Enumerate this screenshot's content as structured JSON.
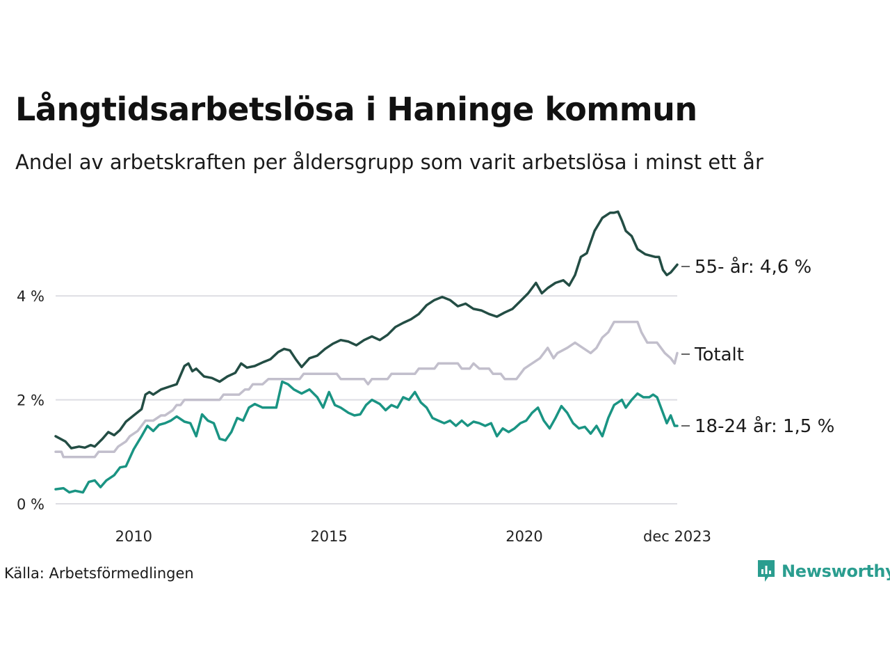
{
  "header": {
    "title": "Långtidsarbetslösa i Haninge kommun",
    "subtitle": "Andel av arbetskraften per åldersgrupp som varit arbetslösa i minst ett år"
  },
  "footer": {
    "source": "Källa: Arbetsförmedlingen",
    "brand": "Newsworthy"
  },
  "colors": {
    "age55": "#234d44",
    "total": "#c2bfcc",
    "age18_24": "#1a9483",
    "grid": "#dddde3",
    "brand": "#2a9d8f"
  },
  "chart_data": {
    "type": "line",
    "title": "Långtidsarbetslösa i Haninge kommun",
    "ylabel": "",
    "xlabel": "",
    "ylim": [
      0,
      5.8
    ],
    "xlim": [
      2008.0,
      2023.917
    ],
    "y_ticks": [
      {
        "value": 0,
        "label": "0 %"
      },
      {
        "value": 2,
        "label": "2 %"
      },
      {
        "value": 4,
        "label": "4 %"
      }
    ],
    "x_ticks": [
      {
        "value": 2010,
        "label": "2010"
      },
      {
        "value": 2015,
        "label": "2015"
      },
      {
        "value": 2020,
        "label": "2020"
      },
      {
        "value": 2023.917,
        "label": "dec 2023"
      }
    ],
    "series": [
      {
        "key": "age55",
        "name": "55- år",
        "end_label": "55- år: 4,6 %",
        "color": "#234d44",
        "points": [
          [
            2008.0,
            1.3
          ],
          [
            2008.25,
            1.2
          ],
          [
            2008.4,
            1.07
          ],
          [
            2008.6,
            1.1
          ],
          [
            2008.75,
            1.08
          ],
          [
            2008.9,
            1.13
          ],
          [
            2009.0,
            1.1
          ],
          [
            2009.2,
            1.25
          ],
          [
            2009.35,
            1.38
          ],
          [
            2009.5,
            1.32
          ],
          [
            2009.65,
            1.42
          ],
          [
            2009.8,
            1.58
          ],
          [
            2010.0,
            1.7
          ],
          [
            2010.2,
            1.82
          ],
          [
            2010.3,
            2.1
          ],
          [
            2010.4,
            2.15
          ],
          [
            2010.5,
            2.1
          ],
          [
            2010.7,
            2.2
          ],
          [
            2010.9,
            2.25
          ],
          [
            2011.1,
            2.3
          ],
          [
            2011.3,
            2.65
          ],
          [
            2011.4,
            2.7
          ],
          [
            2011.5,
            2.55
          ],
          [
            2011.6,
            2.6
          ],
          [
            2011.8,
            2.45
          ],
          [
            2012.0,
            2.42
          ],
          [
            2012.2,
            2.35
          ],
          [
            2012.4,
            2.45
          ],
          [
            2012.6,
            2.52
          ],
          [
            2012.75,
            2.7
          ],
          [
            2012.9,
            2.62
          ],
          [
            2013.1,
            2.65
          ],
          [
            2013.3,
            2.72
          ],
          [
            2013.5,
            2.78
          ],
          [
            2013.7,
            2.92
          ],
          [
            2013.85,
            2.98
          ],
          [
            2014.0,
            2.95
          ],
          [
            2014.15,
            2.78
          ],
          [
            2014.3,
            2.63
          ],
          [
            2014.5,
            2.8
          ],
          [
            2014.7,
            2.85
          ],
          [
            2014.9,
            2.98
          ],
          [
            2015.1,
            3.08
          ],
          [
            2015.3,
            3.15
          ],
          [
            2015.5,
            3.12
          ],
          [
            2015.7,
            3.05
          ],
          [
            2015.9,
            3.15
          ],
          [
            2016.1,
            3.22
          ],
          [
            2016.3,
            3.15
          ],
          [
            2016.5,
            3.25
          ],
          [
            2016.7,
            3.4
          ],
          [
            2016.9,
            3.48
          ],
          [
            2017.1,
            3.55
          ],
          [
            2017.3,
            3.65
          ],
          [
            2017.5,
            3.82
          ],
          [
            2017.7,
            3.92
          ],
          [
            2017.9,
            3.98
          ],
          [
            2018.1,
            3.92
          ],
          [
            2018.3,
            3.8
          ],
          [
            2018.5,
            3.85
          ],
          [
            2018.7,
            3.75
          ],
          [
            2018.9,
            3.72
          ],
          [
            2019.1,
            3.65
          ],
          [
            2019.3,
            3.6
          ],
          [
            2019.5,
            3.68
          ],
          [
            2019.7,
            3.75
          ],
          [
            2019.9,
            3.9
          ],
          [
            2020.1,
            4.05
          ],
          [
            2020.3,
            4.25
          ],
          [
            2020.45,
            4.05
          ],
          [
            2020.6,
            4.15
          ],
          [
            2020.8,
            4.25
          ],
          [
            2021.0,
            4.3
          ],
          [
            2021.15,
            4.2
          ],
          [
            2021.3,
            4.4
          ],
          [
            2021.45,
            4.75
          ],
          [
            2021.6,
            4.82
          ],
          [
            2021.8,
            5.25
          ],
          [
            2022.0,
            5.5
          ],
          [
            2022.2,
            5.6
          ],
          [
            2022.3,
            5.6
          ],
          [
            2022.4,
            5.62
          ],
          [
            2022.5,
            5.45
          ],
          [
            2022.6,
            5.25
          ],
          [
            2022.75,
            5.15
          ],
          [
            2022.9,
            4.9
          ],
          [
            2023.1,
            4.8
          ],
          [
            2023.2,
            4.78
          ],
          [
            2023.35,
            4.75
          ],
          [
            2023.45,
            4.75
          ],
          [
            2023.55,
            4.5
          ],
          [
            2023.65,
            4.4
          ],
          [
            2023.75,
            4.45
          ],
          [
            2023.917,
            4.6
          ]
        ]
      },
      {
        "key": "total",
        "name": "Totalt",
        "end_label": "Totalt",
        "color": "#c2bfcc",
        "points": [
          [
            2008.0,
            1.0
          ],
          [
            2008.15,
            1.0
          ],
          [
            2008.2,
            0.9
          ],
          [
            2008.9,
            0.9
          ],
          [
            2009.0,
            0.9
          ],
          [
            2009.1,
            1.0
          ],
          [
            2009.5,
            1.0
          ],
          [
            2009.6,
            1.1
          ],
          [
            2009.8,
            1.2
          ],
          [
            2009.9,
            1.3
          ],
          [
            2010.1,
            1.4
          ],
          [
            2010.3,
            1.6
          ],
          [
            2010.5,
            1.6
          ],
          [
            2010.7,
            1.7
          ],
          [
            2010.8,
            1.7
          ],
          [
            2011.0,
            1.8
          ],
          [
            2011.1,
            1.9
          ],
          [
            2011.2,
            1.9
          ],
          [
            2011.3,
            2.0
          ],
          [
            2012.2,
            2.0
          ],
          [
            2012.3,
            2.1
          ],
          [
            2012.7,
            2.1
          ],
          [
            2012.85,
            2.2
          ],
          [
            2012.95,
            2.2
          ],
          [
            2013.05,
            2.3
          ],
          [
            2013.3,
            2.3
          ],
          [
            2013.45,
            2.4
          ],
          [
            2014.25,
            2.4
          ],
          [
            2014.35,
            2.5
          ],
          [
            2015.2,
            2.5
          ],
          [
            2015.3,
            2.4
          ],
          [
            2015.9,
            2.4
          ],
          [
            2016.0,
            2.3
          ],
          [
            2016.1,
            2.4
          ],
          [
            2016.5,
            2.4
          ],
          [
            2016.6,
            2.5
          ],
          [
            2017.2,
            2.5
          ],
          [
            2017.3,
            2.6
          ],
          [
            2017.7,
            2.6
          ],
          [
            2017.8,
            2.7
          ],
          [
            2018.3,
            2.7
          ],
          [
            2018.4,
            2.6
          ],
          [
            2018.6,
            2.6
          ],
          [
            2018.7,
            2.7
          ],
          [
            2018.85,
            2.6
          ],
          [
            2019.1,
            2.6
          ],
          [
            2019.2,
            2.5
          ],
          [
            2019.4,
            2.5
          ],
          [
            2019.5,
            2.4
          ],
          [
            2019.8,
            2.4
          ],
          [
            2019.9,
            2.5
          ],
          [
            2020.0,
            2.6
          ],
          [
            2020.2,
            2.7
          ],
          [
            2020.4,
            2.8
          ],
          [
            2020.5,
            2.9
          ],
          [
            2020.6,
            3.0
          ],
          [
            2020.75,
            2.8
          ],
          [
            2020.85,
            2.9
          ],
          [
            2021.1,
            3.0
          ],
          [
            2021.3,
            3.1
          ],
          [
            2021.5,
            3.0
          ],
          [
            2021.7,
            2.9
          ],
          [
            2021.85,
            3.0
          ],
          [
            2022.0,
            3.2
          ],
          [
            2022.15,
            3.3
          ],
          [
            2022.3,
            3.5
          ],
          [
            2022.9,
            3.5
          ],
          [
            2023.0,
            3.3
          ],
          [
            2023.15,
            3.1
          ],
          [
            2023.4,
            3.1
          ],
          [
            2023.5,
            3.0
          ],
          [
            2023.6,
            2.9
          ],
          [
            2023.75,
            2.8
          ],
          [
            2023.85,
            2.7
          ],
          [
            2023.917,
            2.9
          ]
        ]
      },
      {
        "key": "age18_24",
        "name": "18-24 år",
        "end_label": "18-24 år: 1,5 %",
        "color": "#1a9483",
        "points": [
          [
            2008.0,
            0.28
          ],
          [
            2008.2,
            0.3
          ],
          [
            2008.35,
            0.22
          ],
          [
            2008.5,
            0.25
          ],
          [
            2008.7,
            0.22
          ],
          [
            2008.85,
            0.42
          ],
          [
            2009.0,
            0.45
          ],
          [
            2009.15,
            0.32
          ],
          [
            2009.3,
            0.45
          ],
          [
            2009.5,
            0.55
          ],
          [
            2009.65,
            0.7
          ],
          [
            2009.8,
            0.72
          ],
          [
            2010.0,
            1.05
          ],
          [
            2010.2,
            1.3
          ],
          [
            2010.35,
            1.5
          ],
          [
            2010.5,
            1.4
          ],
          [
            2010.65,
            1.52
          ],
          [
            2010.8,
            1.55
          ],
          [
            2010.95,
            1.6
          ],
          [
            2011.1,
            1.68
          ],
          [
            2011.3,
            1.58
          ],
          [
            2011.45,
            1.55
          ],
          [
            2011.6,
            1.3
          ],
          [
            2011.75,
            1.72
          ],
          [
            2011.9,
            1.6
          ],
          [
            2012.05,
            1.55
          ],
          [
            2012.2,
            1.25
          ],
          [
            2012.35,
            1.22
          ],
          [
            2012.5,
            1.38
          ],
          [
            2012.65,
            1.65
          ],
          [
            2012.8,
            1.6
          ],
          [
            2012.95,
            1.85
          ],
          [
            2013.1,
            1.92
          ],
          [
            2013.3,
            1.85
          ],
          [
            2013.5,
            1.85
          ],
          [
            2013.65,
            1.85
          ],
          [
            2013.8,
            2.35
          ],
          [
            2013.95,
            2.3
          ],
          [
            2014.1,
            2.2
          ],
          [
            2014.3,
            2.12
          ],
          [
            2014.5,
            2.2
          ],
          [
            2014.7,
            2.05
          ],
          [
            2014.85,
            1.85
          ],
          [
            2015.0,
            2.15
          ],
          [
            2015.15,
            1.9
          ],
          [
            2015.3,
            1.85
          ],
          [
            2015.5,
            1.75
          ],
          [
            2015.65,
            1.7
          ],
          [
            2015.8,
            1.72
          ],
          [
            2015.95,
            1.9
          ],
          [
            2016.1,
            2.0
          ],
          [
            2016.3,
            1.92
          ],
          [
            2016.45,
            1.8
          ],
          [
            2016.6,
            1.9
          ],
          [
            2016.75,
            1.85
          ],
          [
            2016.9,
            2.05
          ],
          [
            2017.05,
            2.0
          ],
          [
            2017.2,
            2.15
          ],
          [
            2017.35,
            1.95
          ],
          [
            2017.5,
            1.85
          ],
          [
            2017.65,
            1.65
          ],
          [
            2017.8,
            1.6
          ],
          [
            2017.95,
            1.55
          ],
          [
            2018.1,
            1.6
          ],
          [
            2018.25,
            1.5
          ],
          [
            2018.4,
            1.6
          ],
          [
            2018.55,
            1.5
          ],
          [
            2018.7,
            1.58
          ],
          [
            2018.85,
            1.55
          ],
          [
            2019.0,
            1.5
          ],
          [
            2019.15,
            1.55
          ],
          [
            2019.3,
            1.3
          ],
          [
            2019.45,
            1.45
          ],
          [
            2019.6,
            1.38
          ],
          [
            2019.75,
            1.45
          ],
          [
            2019.9,
            1.55
          ],
          [
            2020.05,
            1.6
          ],
          [
            2020.2,
            1.75
          ],
          [
            2020.35,
            1.85
          ],
          [
            2020.5,
            1.6
          ],
          [
            2020.65,
            1.45
          ],
          [
            2020.8,
            1.65
          ],
          [
            2020.95,
            1.88
          ],
          [
            2021.1,
            1.75
          ],
          [
            2021.25,
            1.55
          ],
          [
            2021.4,
            1.45
          ],
          [
            2021.55,
            1.48
          ],
          [
            2021.7,
            1.35
          ],
          [
            2021.85,
            1.5
          ],
          [
            2022.0,
            1.3
          ],
          [
            2022.15,
            1.65
          ],
          [
            2022.3,
            1.9
          ],
          [
            2022.5,
            2.0
          ],
          [
            2022.6,
            1.85
          ],
          [
            2022.75,
            2.0
          ],
          [
            2022.9,
            2.12
          ],
          [
            2023.05,
            2.05
          ],
          [
            2023.2,
            2.05
          ],
          [
            2023.3,
            2.1
          ],
          [
            2023.4,
            2.05
          ],
          [
            2023.55,
            1.75
          ],
          [
            2023.65,
            1.55
          ],
          [
            2023.75,
            1.7
          ],
          [
            2023.85,
            1.5
          ],
          [
            2023.917,
            1.5
          ]
        ]
      }
    ]
  }
}
